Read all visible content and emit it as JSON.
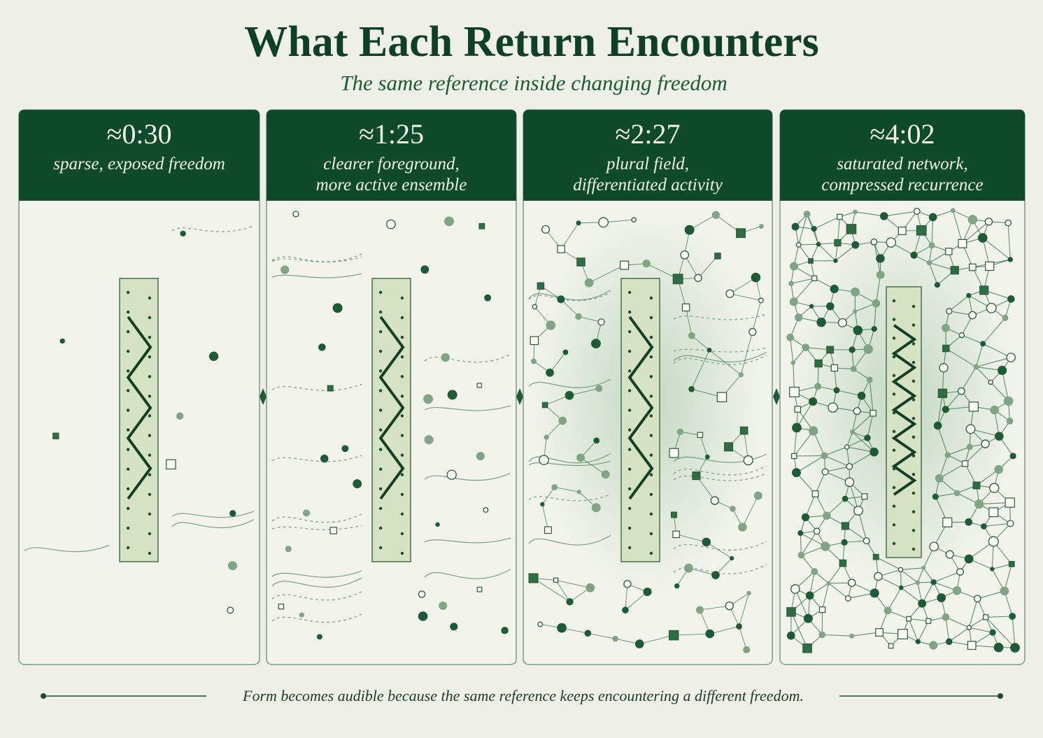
{
  "header": {
    "title": "What Each Return Encounters",
    "subtitle": "The same reference inside changing freedom"
  },
  "panels": [
    {
      "time": "≈0:30",
      "caption": [
        "sparse, exposed freedom"
      ]
    },
    {
      "time": "≈1:25",
      "caption": [
        "clearer foreground,",
        "more active ensemble"
      ]
    },
    {
      "time": "≈2:27",
      "caption": [
        "plural field,",
        "differentiated activity"
      ]
    },
    {
      "time": "≈4:02",
      "caption": [
        "saturated network,",
        "compressed recurrence"
      ]
    }
  ],
  "footer": "Form becomes audible because the same reference keeps encountering a different freedom."
}
